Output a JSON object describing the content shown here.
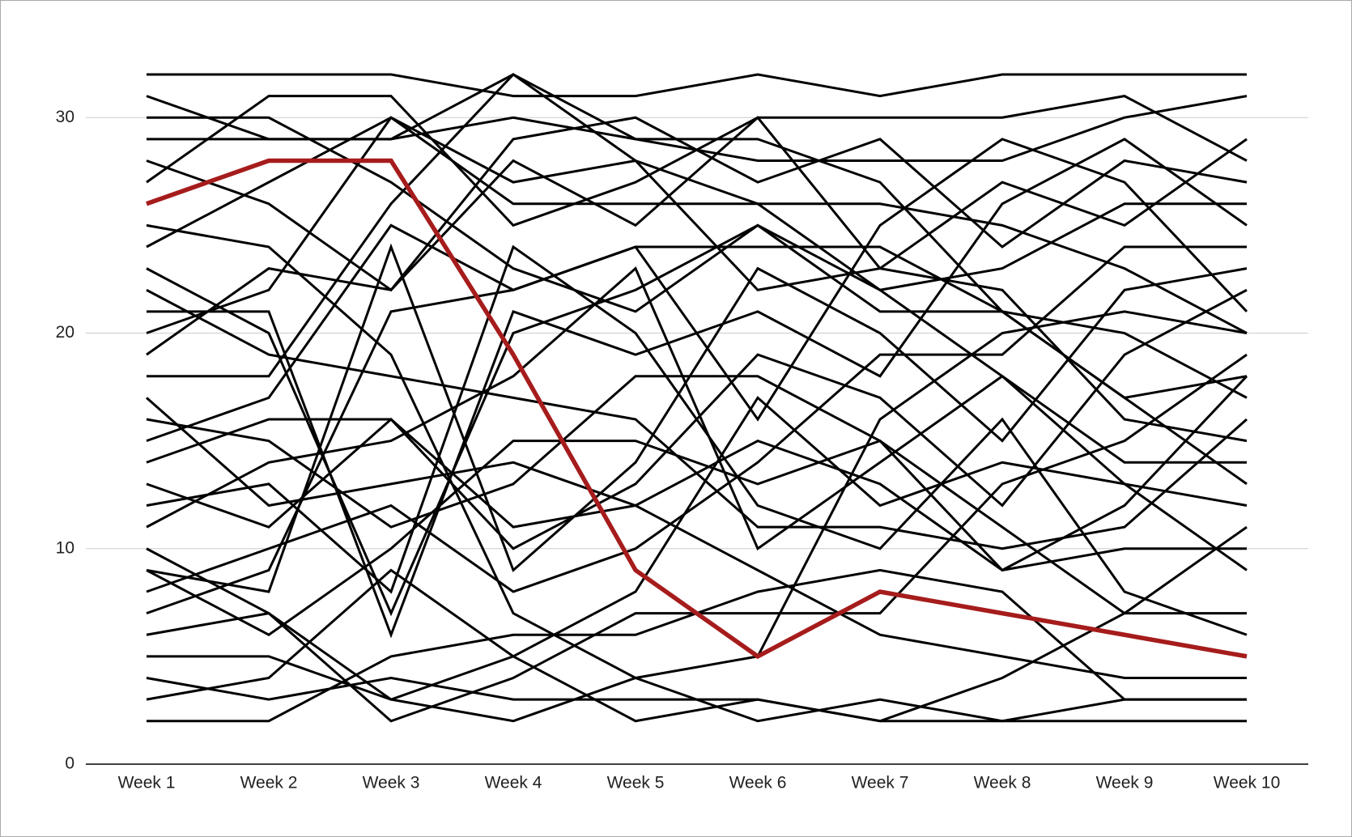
{
  "chart_data": {
    "type": "line",
    "categories": [
      "Week 1",
      "Week 2",
      "Week 3",
      "Week 4",
      "Week 5",
      "Week 6",
      "Week 7",
      "Week 8",
      "Week 9",
      "Week 10"
    ],
    "ylim": [
      0,
      32
    ],
    "yticks": [
      0,
      10,
      20,
      30
    ],
    "grid": true,
    "series": [
      {
        "color": "#000000",
        "values": [
          32,
          32,
          32,
          31,
          31,
          32,
          31,
          32,
          32,
          32
        ]
      },
      {
        "color": "#000000",
        "values": [
          31,
          29,
          29,
          32,
          29,
          29,
          27,
          21,
          20,
          17
        ]
      },
      {
        "color": "#000000",
        "values": [
          30,
          30,
          27,
          23,
          21,
          25,
          21,
          21,
          17,
          13
        ]
      },
      {
        "color": "#000000",
        "values": [
          29,
          29,
          29,
          30,
          29,
          28,
          28,
          28,
          30,
          31
        ]
      },
      {
        "color": "#000000",
        "values": [
          28,
          26,
          22,
          29,
          30,
          27,
          29,
          24,
          28,
          27
        ]
      },
      {
        "color": "#000000",
        "values": [
          27,
          31,
          31,
          25,
          27,
          30,
          30,
          30,
          31,
          28
        ]
      },
      {
        "color": "#000000",
        "values": [
          25,
          24,
          19,
          7,
          4,
          2,
          3,
          2,
          2,
          2
        ]
      },
      {
        "color": "#000000",
        "values": [
          24,
          27,
          30,
          26,
          26,
          26,
          26,
          25,
          23,
          20
        ]
      },
      {
        "color": "#000000",
        "values": [
          23,
          20,
          7,
          20,
          22,
          25,
          22,
          23,
          26,
          26
        ]
      },
      {
        "color": "#000000",
        "values": [
          22,
          19,
          18,
          17,
          16,
          11,
          11,
          10,
          11,
          16
        ]
      },
      {
        "color": "#000000",
        "values": [
          21,
          21,
          6,
          21,
          19,
          21,
          18,
          26,
          29,
          25
        ]
      },
      {
        "color": "#000000",
        "values": [
          20,
          22,
          30,
          27,
          28,
          22,
          23,
          27,
          25,
          29
        ]
      },
      {
        "color": "#000000",
        "values": [
          19,
          23,
          22,
          28,
          25,
          30,
          23,
          22,
          16,
          15
        ]
      },
      {
        "color": "#000000",
        "values": [
          18,
          18,
          26,
          32,
          28,
          26,
          22,
          18,
          13,
          9
        ]
      },
      {
        "color": "#000000",
        "values": [
          17,
          12,
          13,
          14,
          12,
          15,
          13,
          9,
          10,
          10
        ]
      },
      {
        "color": "#000000",
        "values": [
          16,
          15,
          11,
          13,
          18,
          18,
          15,
          11,
          7,
          7
        ]
      },
      {
        "color": "#000000",
        "values": [
          15,
          17,
          25,
          22,
          24,
          16,
          25,
          29,
          27,
          21
        ]
      },
      {
        "color": "#000000",
        "values": [
          14,
          16,
          16,
          10,
          13,
          19,
          17,
          12,
          19,
          22
        ]
      },
      {
        "color": "#000000",
        "values": [
          13,
          11,
          16,
          11,
          12,
          9,
          6,
          5,
          4,
          4
        ]
      },
      {
        "color": "#000000",
        "values": [
          12,
          13,
          8,
          24,
          20,
          12,
          10,
          16,
          8,
          6
        ]
      },
      {
        "color": "#000000",
        "values": [
          11,
          14,
          15,
          18,
          23,
          10,
          14,
          18,
          14,
          14
        ]
      },
      {
        "color": "#000000",
        "values": [
          10,
          7,
          3,
          2,
          4,
          5,
          16,
          20,
          21,
          20
        ]
      },
      {
        "color": "#000000",
        "values": [
          9,
          8,
          24,
          9,
          14,
          23,
          20,
          15,
          22,
          23
        ]
      },
      {
        "color": "#000000",
        "values": [
          8,
          10,
          12,
          8,
          10,
          14,
          19,
          19,
          24,
          24
        ]
      },
      {
        "color": "#000000",
        "values": [
          7,
          9,
          21,
          22,
          24,
          24,
          24,
          21,
          17,
          18
        ]
      },
      {
        "color": "#000000",
        "values": [
          6,
          7,
          2,
          4,
          7,
          7,
          7,
          13,
          15,
          19
        ]
      },
      {
        "color": "#000000",
        "values": [
          5,
          5,
          3,
          5,
          2,
          3,
          2,
          2,
          3,
          3
        ]
      },
      {
        "color": "#000000",
        "values": [
          4,
          3,
          4,
          3,
          3,
          3,
          2,
          4,
          7,
          11
        ]
      },
      {
        "color": "#000000",
        "values": [
          3,
          4,
          9,
          5,
          8,
          17,
          12,
          14,
          13,
          12
        ]
      },
      {
        "color": "#000000",
        "values": [
          2,
          2,
          5,
          6,
          6,
          8,
          9,
          8,
          3,
          3
        ]
      },
      {
        "color": "#000000",
        "values": [
          9,
          6,
          10,
          15,
          15,
          13,
          15,
          9,
          12,
          18
        ]
      },
      {
        "color": "#a61c1c",
        "values": [
          26,
          28,
          28,
          19,
          9,
          5,
          8,
          7,
          6,
          5
        ]
      }
    ]
  }
}
